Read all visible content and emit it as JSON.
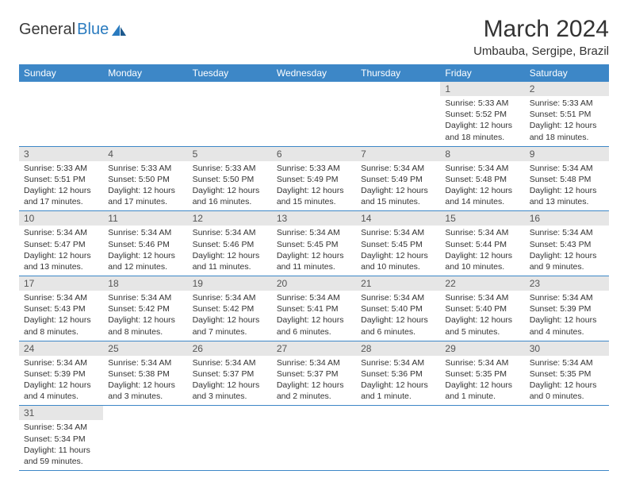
{
  "logo": {
    "text_dark": "General",
    "text_blue": "Blue"
  },
  "header": {
    "title": "March 2024",
    "location": "Umbauba, Sergipe, Brazil"
  },
  "colors": {
    "header_bg": "#3d87c7",
    "header_text": "#ffffff",
    "daynum_bg": "#e6e6e6",
    "cell_border": "#3d87c7",
    "logo_blue": "#2a7bbf",
    "text": "#333333"
  },
  "weekdays": [
    "Sunday",
    "Monday",
    "Tuesday",
    "Wednesday",
    "Thursday",
    "Friday",
    "Saturday"
  ],
  "weeks": [
    [
      null,
      null,
      null,
      null,
      null,
      {
        "n": "1",
        "sr": "Sunrise: 5:33 AM",
        "ss": "Sunset: 5:52 PM",
        "dl": "Daylight: 12 hours and 18 minutes."
      },
      {
        "n": "2",
        "sr": "Sunrise: 5:33 AM",
        "ss": "Sunset: 5:51 PM",
        "dl": "Daylight: 12 hours and 18 minutes."
      }
    ],
    [
      {
        "n": "3",
        "sr": "Sunrise: 5:33 AM",
        "ss": "Sunset: 5:51 PM",
        "dl": "Daylight: 12 hours and 17 minutes."
      },
      {
        "n": "4",
        "sr": "Sunrise: 5:33 AM",
        "ss": "Sunset: 5:50 PM",
        "dl": "Daylight: 12 hours and 17 minutes."
      },
      {
        "n": "5",
        "sr": "Sunrise: 5:33 AM",
        "ss": "Sunset: 5:50 PM",
        "dl": "Daylight: 12 hours and 16 minutes."
      },
      {
        "n": "6",
        "sr": "Sunrise: 5:33 AM",
        "ss": "Sunset: 5:49 PM",
        "dl": "Daylight: 12 hours and 15 minutes."
      },
      {
        "n": "7",
        "sr": "Sunrise: 5:34 AM",
        "ss": "Sunset: 5:49 PM",
        "dl": "Daylight: 12 hours and 15 minutes."
      },
      {
        "n": "8",
        "sr": "Sunrise: 5:34 AM",
        "ss": "Sunset: 5:48 PM",
        "dl": "Daylight: 12 hours and 14 minutes."
      },
      {
        "n": "9",
        "sr": "Sunrise: 5:34 AM",
        "ss": "Sunset: 5:48 PM",
        "dl": "Daylight: 12 hours and 13 minutes."
      }
    ],
    [
      {
        "n": "10",
        "sr": "Sunrise: 5:34 AM",
        "ss": "Sunset: 5:47 PM",
        "dl": "Daylight: 12 hours and 13 minutes."
      },
      {
        "n": "11",
        "sr": "Sunrise: 5:34 AM",
        "ss": "Sunset: 5:46 PM",
        "dl": "Daylight: 12 hours and 12 minutes."
      },
      {
        "n": "12",
        "sr": "Sunrise: 5:34 AM",
        "ss": "Sunset: 5:46 PM",
        "dl": "Daylight: 12 hours and 11 minutes."
      },
      {
        "n": "13",
        "sr": "Sunrise: 5:34 AM",
        "ss": "Sunset: 5:45 PM",
        "dl": "Daylight: 12 hours and 11 minutes."
      },
      {
        "n": "14",
        "sr": "Sunrise: 5:34 AM",
        "ss": "Sunset: 5:45 PM",
        "dl": "Daylight: 12 hours and 10 minutes."
      },
      {
        "n": "15",
        "sr": "Sunrise: 5:34 AM",
        "ss": "Sunset: 5:44 PM",
        "dl": "Daylight: 12 hours and 10 minutes."
      },
      {
        "n": "16",
        "sr": "Sunrise: 5:34 AM",
        "ss": "Sunset: 5:43 PM",
        "dl": "Daylight: 12 hours and 9 minutes."
      }
    ],
    [
      {
        "n": "17",
        "sr": "Sunrise: 5:34 AM",
        "ss": "Sunset: 5:43 PM",
        "dl": "Daylight: 12 hours and 8 minutes."
      },
      {
        "n": "18",
        "sr": "Sunrise: 5:34 AM",
        "ss": "Sunset: 5:42 PM",
        "dl": "Daylight: 12 hours and 8 minutes."
      },
      {
        "n": "19",
        "sr": "Sunrise: 5:34 AM",
        "ss": "Sunset: 5:42 PM",
        "dl": "Daylight: 12 hours and 7 minutes."
      },
      {
        "n": "20",
        "sr": "Sunrise: 5:34 AM",
        "ss": "Sunset: 5:41 PM",
        "dl": "Daylight: 12 hours and 6 minutes."
      },
      {
        "n": "21",
        "sr": "Sunrise: 5:34 AM",
        "ss": "Sunset: 5:40 PM",
        "dl": "Daylight: 12 hours and 6 minutes."
      },
      {
        "n": "22",
        "sr": "Sunrise: 5:34 AM",
        "ss": "Sunset: 5:40 PM",
        "dl": "Daylight: 12 hours and 5 minutes."
      },
      {
        "n": "23",
        "sr": "Sunrise: 5:34 AM",
        "ss": "Sunset: 5:39 PM",
        "dl": "Daylight: 12 hours and 4 minutes."
      }
    ],
    [
      {
        "n": "24",
        "sr": "Sunrise: 5:34 AM",
        "ss": "Sunset: 5:39 PM",
        "dl": "Daylight: 12 hours and 4 minutes."
      },
      {
        "n": "25",
        "sr": "Sunrise: 5:34 AM",
        "ss": "Sunset: 5:38 PM",
        "dl": "Daylight: 12 hours and 3 minutes."
      },
      {
        "n": "26",
        "sr": "Sunrise: 5:34 AM",
        "ss": "Sunset: 5:37 PM",
        "dl": "Daylight: 12 hours and 3 minutes."
      },
      {
        "n": "27",
        "sr": "Sunrise: 5:34 AM",
        "ss": "Sunset: 5:37 PM",
        "dl": "Daylight: 12 hours and 2 minutes."
      },
      {
        "n": "28",
        "sr": "Sunrise: 5:34 AM",
        "ss": "Sunset: 5:36 PM",
        "dl": "Daylight: 12 hours and 1 minute."
      },
      {
        "n": "29",
        "sr": "Sunrise: 5:34 AM",
        "ss": "Sunset: 5:35 PM",
        "dl": "Daylight: 12 hours and 1 minute."
      },
      {
        "n": "30",
        "sr": "Sunrise: 5:34 AM",
        "ss": "Sunset: 5:35 PM",
        "dl": "Daylight: 12 hours and 0 minutes."
      }
    ],
    [
      {
        "n": "31",
        "sr": "Sunrise: 5:34 AM",
        "ss": "Sunset: 5:34 PM",
        "dl": "Daylight: 11 hours and 59 minutes."
      },
      null,
      null,
      null,
      null,
      null,
      null
    ]
  ]
}
